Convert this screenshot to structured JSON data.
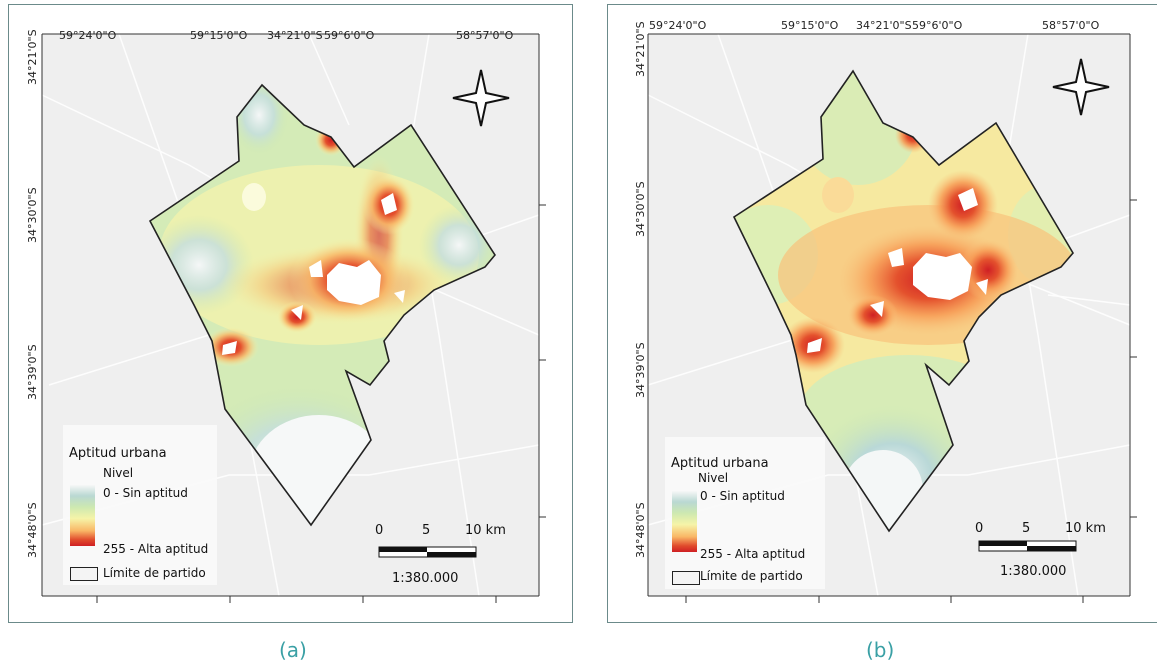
{
  "colors": {
    "frame": "#6b8a8a",
    "caption": "#3aa0a5",
    "low": "#f7f7f7",
    "mid": "#f6f4a8",
    "high": "#cf1f24"
  },
  "icons": {
    "north_arrow": "north-arrow-star-icon"
  },
  "panels": [
    {
      "caption": "(a)",
      "coords_top": [
        "59°24'0\"O",
        "59°15'0\"O",
        "34°21'0\"S",
        "59°6'0\"O",
        "58°57'0\"O"
      ],
      "coords_left": [
        "34°21'0\"S",
        "34°30'0\"S",
        "34°39'0\"S",
        "34°48'0\"S"
      ],
      "legend": {
        "title": "Aptitud urbana",
        "subtitle": "Nivel",
        "low": "0   -  Sin aptitud",
        "high": "255 - Alta aptitud",
        "boundary": "Límite de partido"
      },
      "scale": {
        "n0": "0",
        "n1": "5",
        "n2": "10 km",
        "ratio": "1:380.000"
      }
    },
    {
      "caption": "(b)",
      "coords_top": [
        "59°24'0\"O",
        "59°15'0\"O",
        "34°21'0\"S",
        "59°6'0\"O",
        "58°57'0\"O"
      ],
      "coords_left": [
        "34°21'0\"S",
        "34°30'0\"S",
        "34°39'0\"S",
        "34°48'0\"S"
      ],
      "legend": {
        "title": "Aptitud urbana",
        "subtitle": "Nivel",
        "low": "0     -  Sin aptitud",
        "high": "255  -  Alta aptitud",
        "boundary": "Límite de partido"
      },
      "scale": {
        "n0": "0",
        "n1": "5",
        "n2": "10 km",
        "ratio": "1:380.000"
      }
    }
  ]
}
